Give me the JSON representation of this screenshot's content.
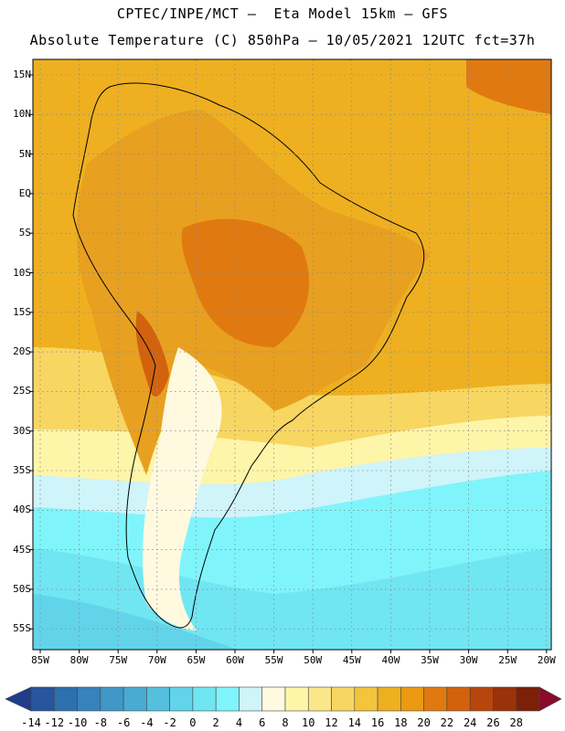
{
  "header": {
    "line1": "CPTEC/INPE/MCT –  Eta Model 15km – GFS",
    "line2": "Absolute Temperature (C) 850hPa – 10/05/2021 12UTC fct=37h"
  },
  "axes": {
    "lat_labels": [
      "15N",
      "10N",
      "5N",
      "EQ",
      "5S",
      "10S",
      "15S",
      "20S",
      "25S",
      "30S",
      "35S",
      "40S",
      "45S",
      "50S",
      "55S"
    ],
    "lon_labels": [
      "85W",
      "80W",
      "75W",
      "70W",
      "65W",
      "60W",
      "55W",
      "50W",
      "45W",
      "40W",
      "35W",
      "30W",
      "25W",
      "20W"
    ]
  },
  "colorbar": {
    "labels": [
      "-14",
      "-12",
      "-10",
      "-8",
      "-6",
      "-4",
      "-2",
      "0",
      "2",
      "4",
      "6",
      "8",
      "10",
      "12",
      "14",
      "16",
      "18",
      "20",
      "22",
      "24",
      "26",
      "28"
    ],
    "colors": [
      "#1f3d8c",
      "#28559c",
      "#2e6fae",
      "#3683bd",
      "#3f98c8",
      "#49abd2",
      "#55c0de",
      "#62d4ea",
      "#70e6f2",
      "#7ff5fb",
      "#cff4fa",
      "#fff9e0",
      "#fdf5a8",
      "#fbe78a",
      "#f8d662",
      "#f3c43c",
      "#eeb020",
      "#eb9a12",
      "#e07a10",
      "#d2620e",
      "#b8460c",
      "#9a320a",
      "#7d2009",
      "#8a0b2a"
    ]
  }
}
